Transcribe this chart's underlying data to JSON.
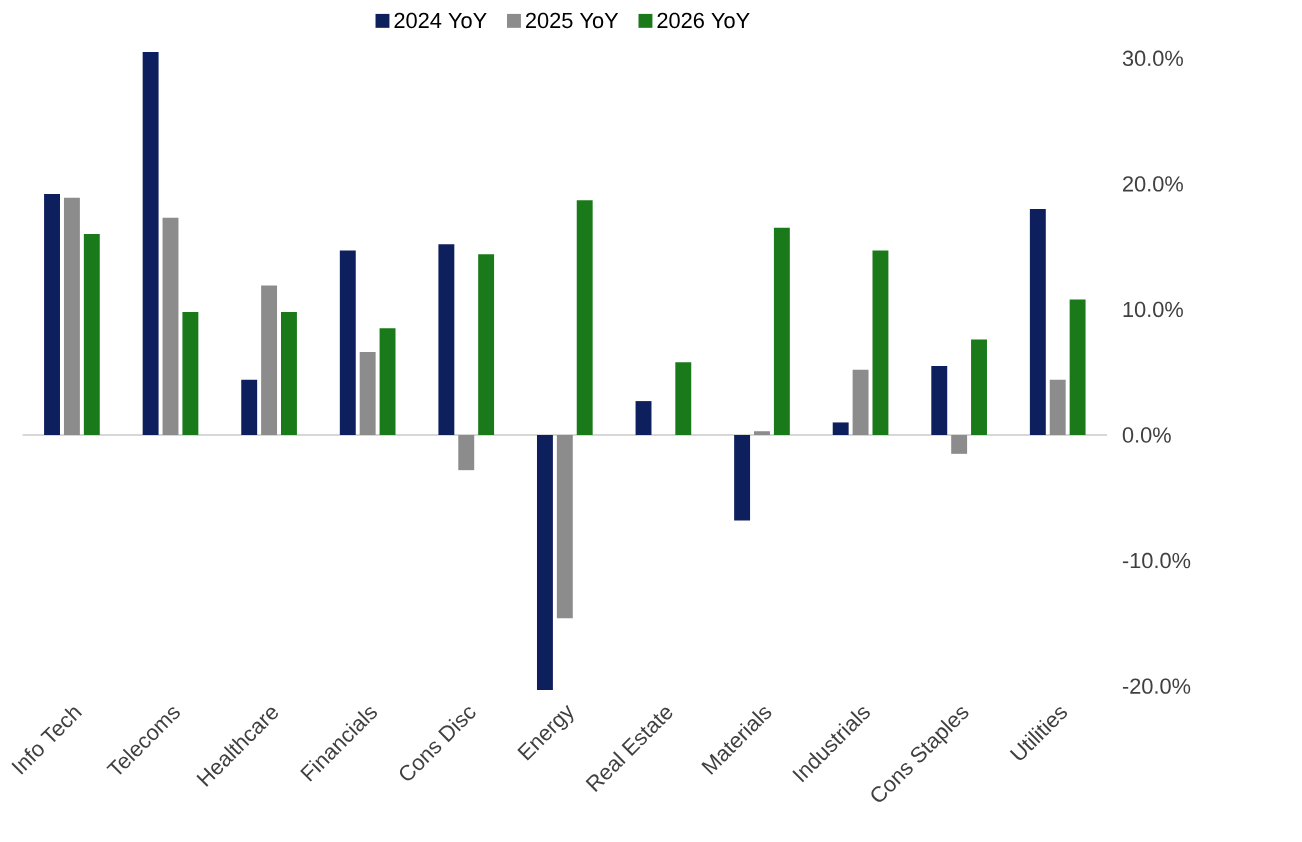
{
  "chart_data": {
    "type": "bar",
    "categories": [
      "Info Tech",
      "Telecoms",
      "Healthcare",
      "Financials",
      "Cons Disc",
      "Energy",
      "Real Estate",
      "Materials",
      "Industrials",
      "Cons Staples",
      "Utilities"
    ],
    "series": [
      {
        "name": "2024 YoY",
        "color": "#0d1f5c",
        "values": [
          19.2,
          30.5,
          4.4,
          14.7,
          15.2,
          -20.3,
          2.7,
          -6.8,
          1.0,
          5.5,
          18.0
        ]
      },
      {
        "name": "2025 YoY",
        "color": "#8c8c8c",
        "values": [
          18.9,
          17.3,
          11.9,
          6.6,
          -2.8,
          -14.6,
          0,
          0.3,
          5.2,
          -1.5,
          4.4
        ]
      },
      {
        "name": "2026 YoY",
        "color": "#1a7a1a",
        "values": [
          16.0,
          9.8,
          9.8,
          8.5,
          14.4,
          18.7,
          5.8,
          16.5,
          14.7,
          7.6,
          10.8
        ]
      }
    ],
    "ylim": [
      -20.5,
      31
    ],
    "yticks": [
      {
        "value": -20,
        "label": "-20.0%"
      },
      {
        "value": -10,
        "label": "-10.0%"
      },
      {
        "value": 0,
        "label": "0.0%"
      },
      {
        "value": 10,
        "label": "10.0%"
      },
      {
        "value": 20,
        "label": "20.0%"
      },
      {
        "value": 30,
        "label": "30.0%"
      }
    ],
    "legend": "top"
  }
}
